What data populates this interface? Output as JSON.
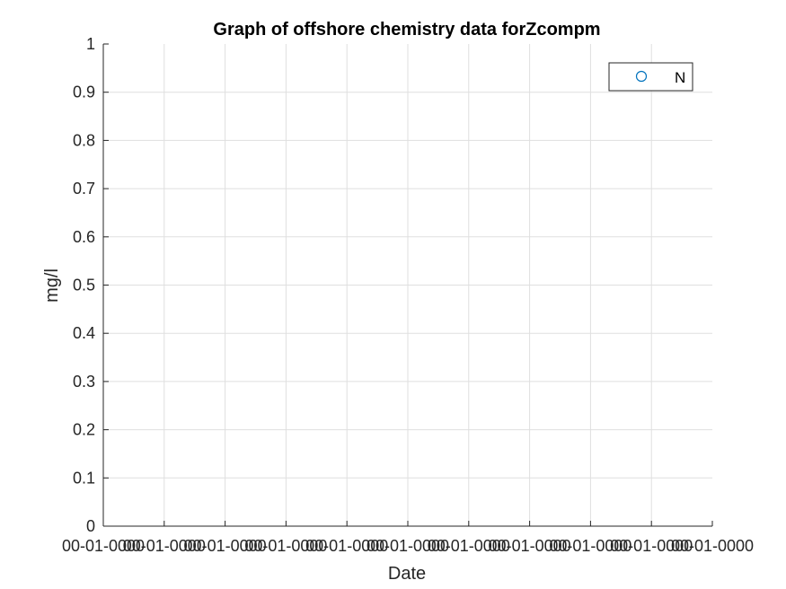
{
  "chart_data": {
    "type": "scatter",
    "title": "Graph of offshore chemistry data forZcompm",
    "xlabel": "Date",
    "ylabel": "mg/l",
    "ylim": [
      0,
      1
    ],
    "yticks": [
      "0",
      "0.1",
      "0.2",
      "0.3",
      "0.4",
      "0.5",
      "0.6",
      "0.7",
      "0.8",
      "0.9",
      "1"
    ],
    "xticks": [
      "00-01-0000",
      "00-01-0000",
      "00-01-0000",
      "00-01-0000",
      "00-01-0000",
      "00-01-0000",
      "00-01-0000",
      "00-01-0000",
      "00-01-0000",
      "00-01-0000",
      "00-01-0000"
    ],
    "grid": true,
    "legend_position": "top-right",
    "series": [
      {
        "name": "N",
        "marker": "circle",
        "color": "#0072BD",
        "x": [],
        "y": []
      }
    ]
  }
}
